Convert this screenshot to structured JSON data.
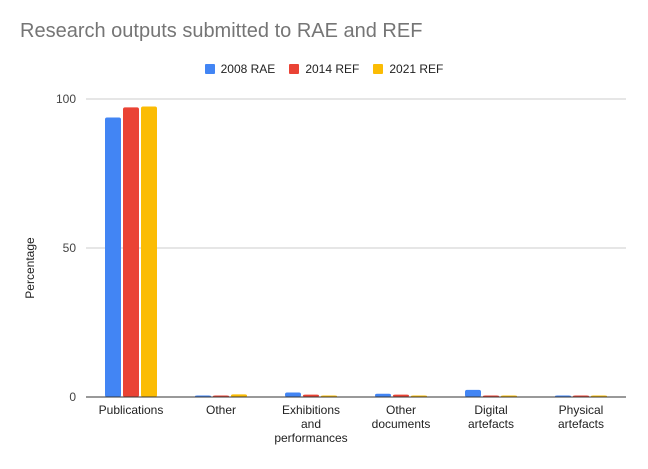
{
  "chart_data": {
    "type": "bar",
    "title": "Research outputs submitted to RAE and REF",
    "xlabel": "",
    "ylabel": "Percentage",
    "ylim": [
      0,
      100
    ],
    "yticks": [
      0,
      50,
      100
    ],
    "grid": true,
    "legend": "top",
    "categories": [
      [
        "Publications"
      ],
      [
        "Other"
      ],
      [
        "Exhibitions",
        "and",
        "performances"
      ],
      [
        "Other",
        "documents"
      ],
      [
        "Digital",
        "artefacts"
      ],
      [
        "Physical",
        "artefacts"
      ]
    ],
    "series": [
      {
        "name": "2008 RAE",
        "color": "#4285f4",
        "values": [
          93.8,
          0.4,
          1.5,
          1.1,
          2.4,
          0.4
        ]
      },
      {
        "name": "2014 REF",
        "color": "#ea4335",
        "values": [
          97.2,
          0.1,
          0.8,
          0.8,
          0.4,
          0.4
        ]
      },
      {
        "name": "2021 REF",
        "color": "#fbbc04",
        "values": [
          97.5,
          0.9,
          0.5,
          0.4,
          0.3,
          0.3
        ]
      }
    ]
  }
}
